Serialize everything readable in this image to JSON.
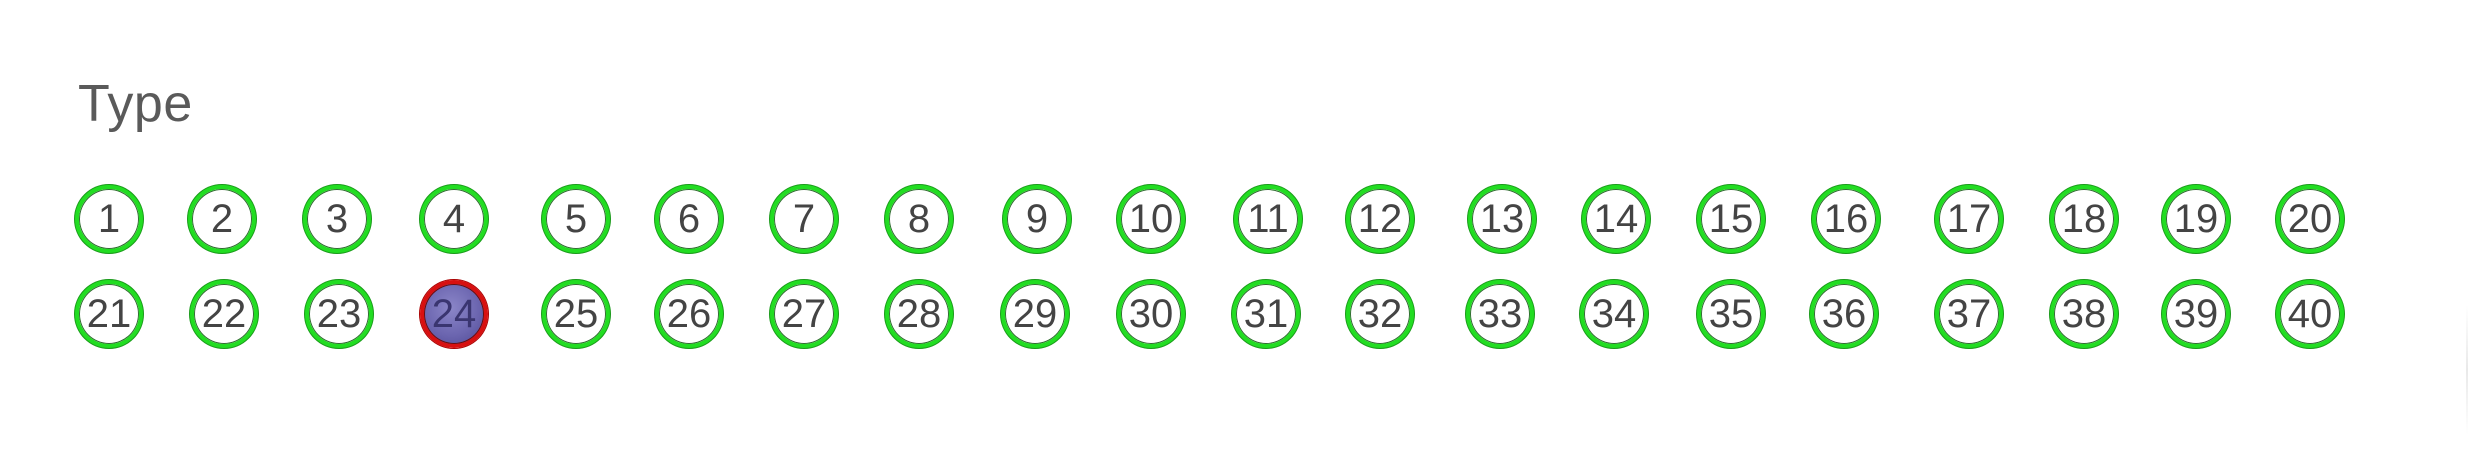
{
  "section": {
    "title": "Type"
  },
  "types": {
    "selected": "24",
    "row1": [
      "1",
      "2",
      "3",
      "4",
      "5",
      "6",
      "7",
      "8",
      "9",
      "10",
      "11",
      "12",
      "13",
      "14",
      "15",
      "16",
      "17",
      "18",
      "19",
      "20"
    ],
    "row2": [
      "21",
      "22",
      "23",
      "24",
      "25",
      "26",
      "27",
      "28",
      "29",
      "30",
      "31",
      "32",
      "33",
      "34",
      "35",
      "36",
      "37",
      "38",
      "39",
      "40"
    ]
  },
  "colors": {
    "ring_default": "#22dd22",
    "ring_selected": "#d81010",
    "fill_selected": "#6c66b0",
    "text": "#444444"
  }
}
